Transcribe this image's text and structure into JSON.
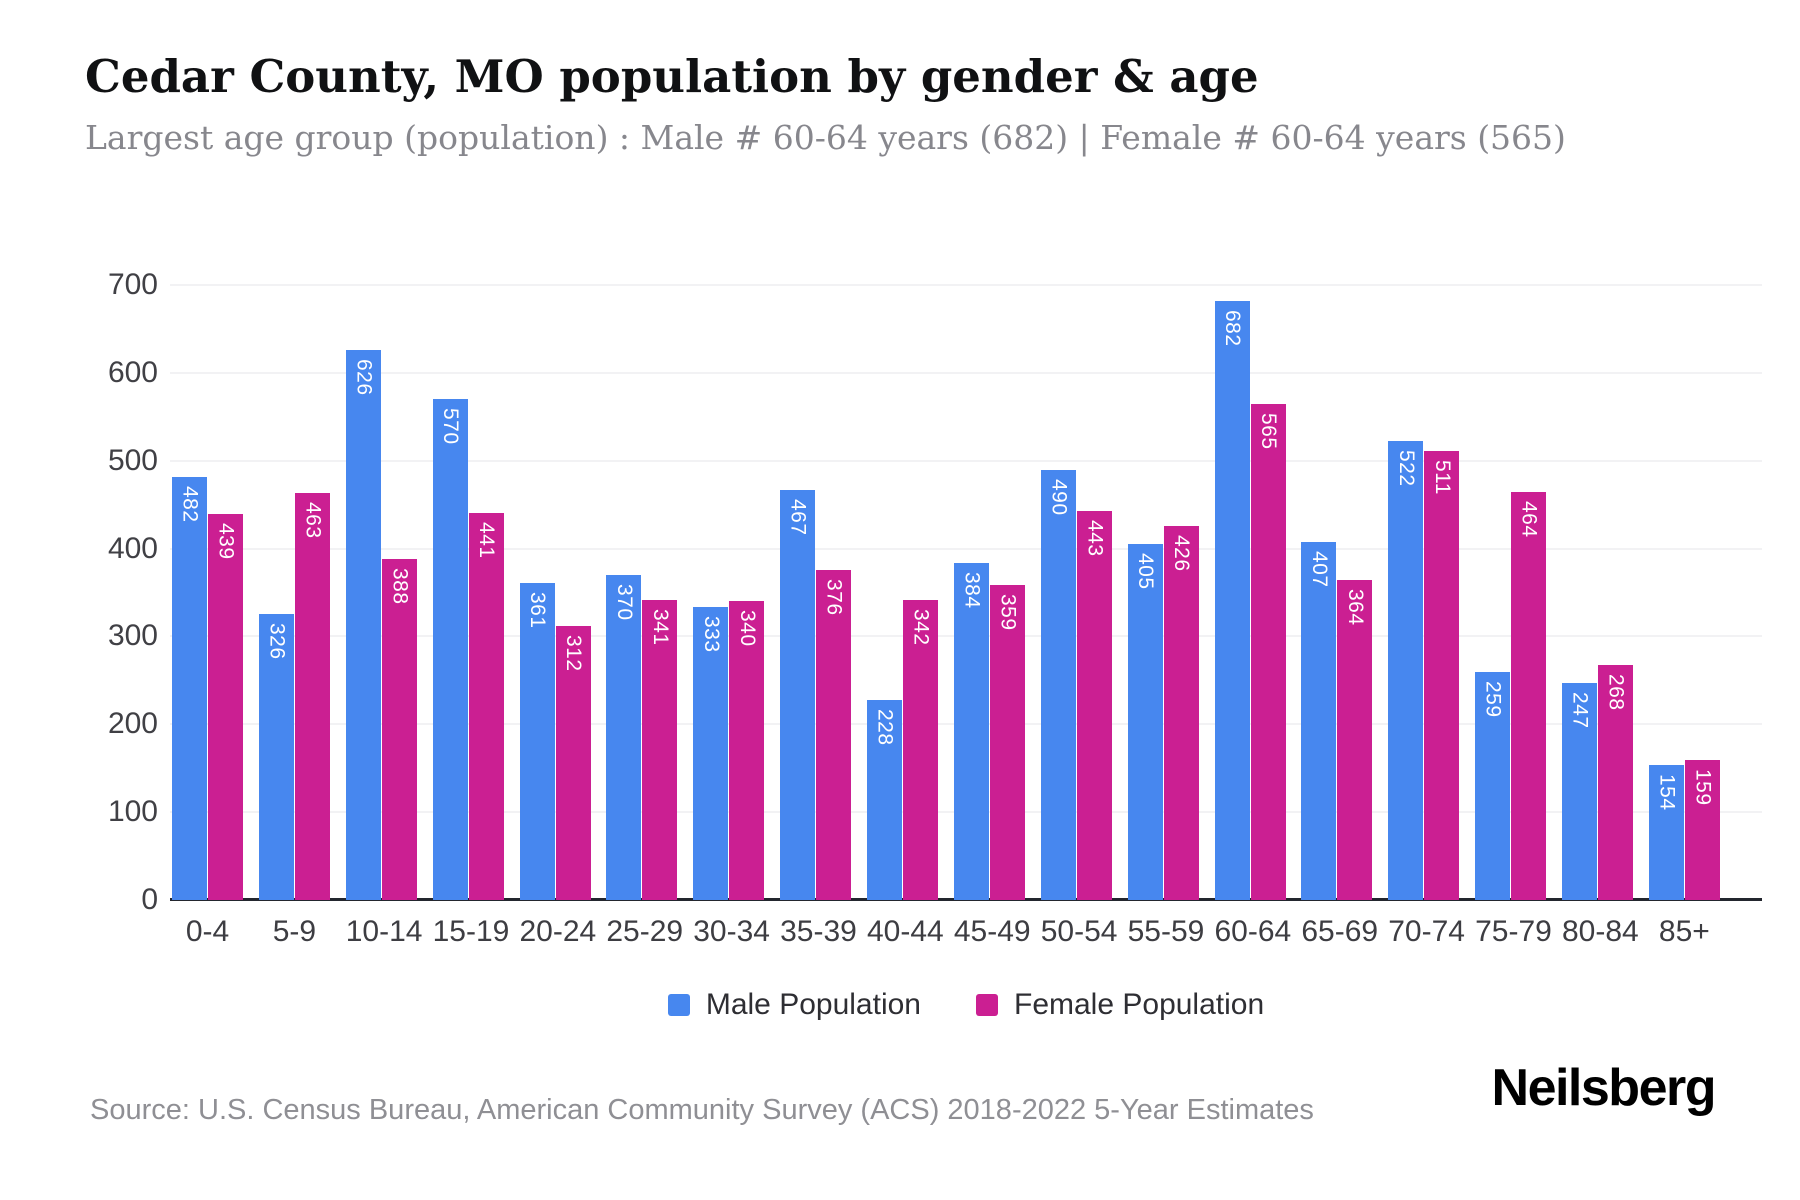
{
  "title": "Cedar County, MO population by gender & age",
  "subtitle": "Largest age group (population) : Male # 60-64 years (682) | Female # 60-64 years (565)",
  "source": "Source: U.S. Census Bureau, American Community Survey (ACS) 2018-2022 5-Year Estimates",
  "brand": "Neilsberg",
  "colors": {
    "male": "#4787EF",
    "female": "#CB1F92"
  },
  "chart_data": {
    "type": "bar",
    "categories": [
      "0-4",
      "5-9",
      "10-14",
      "15-19",
      "20-24",
      "25-29",
      "30-34",
      "35-39",
      "40-44",
      "45-49",
      "50-54",
      "55-59",
      "60-64",
      "65-69",
      "70-74",
      "75-79",
      "80-84",
      "85+"
    ],
    "series": [
      {
        "name": "Male Population",
        "color": "#4787EF",
        "values": [
          482,
          326,
          626,
          570,
          361,
          370,
          333,
          467,
          228,
          384,
          490,
          405,
          682,
          407,
          522,
          259,
          247,
          154
        ]
      },
      {
        "name": "Female Population",
        "color": "#CB1F92",
        "values": [
          439,
          463,
          388,
          441,
          312,
          341,
          340,
          376,
          342,
          359,
          443,
          426,
          565,
          364,
          511,
          464,
          268,
          159
        ]
      }
    ],
    "title": "Cedar County, MO population by gender & age",
    "xlabel": "",
    "ylabel": "",
    "ylim": [
      0,
      700
    ],
    "yticks": [
      0,
      100,
      200,
      300,
      400,
      500,
      600,
      700
    ],
    "grid": true,
    "legend_position": "bottom",
    "bar_value_labels": "rotated-vertical-inside-top"
  }
}
